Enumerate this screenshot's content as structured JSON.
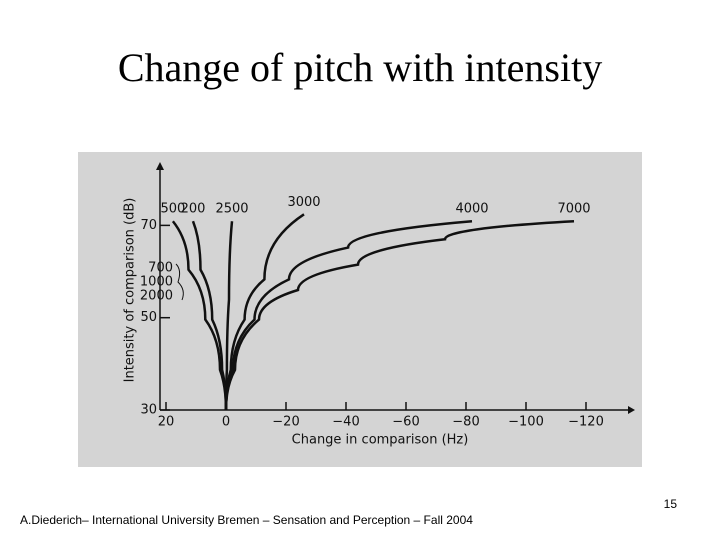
{
  "slide_title": "Change of pitch with intensity",
  "footer": "A.Diederich– International University Bremen – Sensation and Perception – Fall 2004",
  "page_number": "15",
  "chart_data": {
    "type": "line",
    "x_label": "Change in comparison (Hz)",
    "y_label": "Intensity of comparison (dB)",
    "color": "#111111",
    "xlim": [
      22,
      -133
    ],
    "ylim": [
      30,
      82
    ],
    "xticks": [
      20,
      0,
      {
        "value": -20,
        "label": "−20"
      },
      {
        "value": -40,
        "label": "−40"
      },
      {
        "value": -60,
        "label": "−60"
      },
      {
        "value": -80,
        "label": "−80"
      },
      {
        "value": -100,
        "label": "−100"
      },
      {
        "value": -120,
        "label": "−120"
      }
    ],
    "yticks": [
      30,
      50,
      70
    ],
    "annotations": [
      "700",
      "1000",
      "2000"
    ],
    "series": [
      {
        "name": "500",
        "x": [
          0,
          2,
          6.9,
          12.5,
          17.7
        ],
        "values": [
          30,
          38.7,
          49.6,
          60.4,
          70.9
        ]
      },
      {
        "name": "200",
        "x": [
          0,
          1.3,
          4.6,
          8.5,
          11
        ],
        "values": [
          30,
          38.7,
          49.6,
          60.4,
          70.9
        ]
      },
      {
        "name": "2500",
        "x": [
          0,
          -0.3,
          -1,
          -2
        ],
        "values": [
          30,
          38.7,
          53.9,
          70.9
        ]
      },
      {
        "name": "3000",
        "x": [
          0,
          -1.6,
          -6.2,
          -12.8,
          -26
        ],
        "values": [
          30,
          38.7,
          49.6,
          58.3,
          72.4
        ]
      },
      {
        "name": "4000",
        "x": [
          0,
          -2.3,
          -9.5,
          -21,
          -40.7,
          -82
        ],
        "values": [
          30,
          38.7,
          49.6,
          58.3,
          65.2,
          70.9
        ]
      },
      {
        "name": "7000",
        "x": [
          0,
          -3,
          -11,
          -24,
          -44,
          -73,
          -116
        ],
        "values": [
          30,
          38.7,
          49.6,
          56,
          61.5,
          67,
          70.9
        ]
      }
    ]
  }
}
